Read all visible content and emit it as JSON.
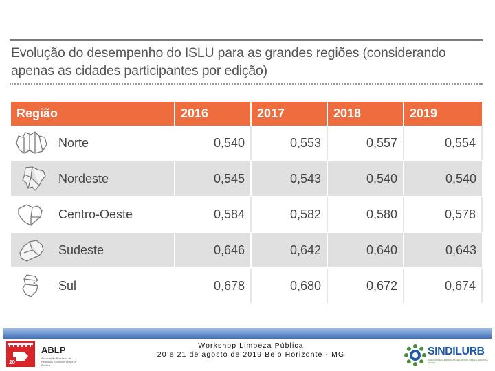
{
  "title": "Evolução do desempenho do ISLU para as grandes regiões (considerando apenas as cidades participantes por edição)",
  "table": {
    "headers": [
      "Região",
      "2016",
      "2017",
      "2018",
      "2019"
    ],
    "rows": [
      {
        "region": "Norte",
        "icon": "norte-map-icon",
        "values": [
          "0,540",
          "0,553",
          "0,557",
          "0,554"
        ]
      },
      {
        "region": "Nordeste",
        "icon": "nordeste-map-icon",
        "values": [
          "0,545",
          "0,543",
          "0,540",
          "0,540"
        ]
      },
      {
        "region": "Centro-Oeste",
        "icon": "centro-oeste-map-icon",
        "values": [
          "0,584",
          "0,582",
          "0,580",
          "0,578"
        ]
      },
      {
        "region": "Sudeste",
        "icon": "sudeste-map-icon",
        "values": [
          "0,646",
          "0,642",
          "0,640",
          "0,643"
        ]
      },
      {
        "region": "Sul",
        "icon": "sul-map-icon",
        "values": [
          "0,678",
          "0,680",
          "0,672",
          "0,674"
        ]
      }
    ]
  },
  "footer": {
    "event_line1": "Workshop Limpeza Pública",
    "event_line2": "20 e 21 de agosto de 2019 Belo Horizonte - MG",
    "left_logo_text": "ABLP",
    "left_logo_subtitle": "Associação Brasileira de Resíduos Sólidos e Limpeza Pública",
    "left_logo_number": "20",
    "right_logo_text": "SINDILURB",
    "right_logo_subtitle": "SINDICATO DAS EMPRESAS DE LIMPEZA URBANA DE MINAS GERAIS"
  },
  "colors": {
    "header_bg": "#ee6c3d",
    "stripe": "#e0e0e0",
    "footer_bar": "#3f6fb8",
    "sindi_blue": "#1f5aa8",
    "sindi_green": "#4a8a3a",
    "ablp_red": "#d9252a"
  }
}
